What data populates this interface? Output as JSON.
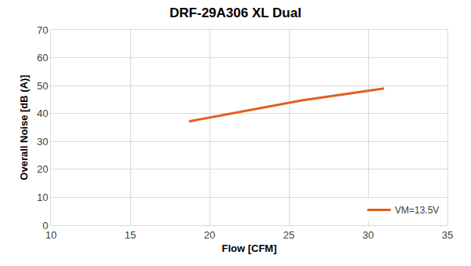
{
  "chart_data": {
    "type": "line",
    "title": "DRF-29A306 XL Dual",
    "x_label": "Flow [CFM]",
    "y_label": "Overall Noise [dB (A)]",
    "series": [
      {
        "name": "VM=13.5V",
        "color": "#e0601f",
        "x": [
          18.7,
          25.8,
          31.0
        ],
        "values": [
          37.2,
          44.7,
          49.0
        ]
      }
    ],
    "xlim": [
      10,
      35
    ],
    "xticks": [
      10,
      15,
      20,
      25,
      30,
      35
    ],
    "ylim": [
      0,
      70
    ],
    "yticks": [
      0,
      10,
      20,
      30,
      40,
      50,
      60,
      70
    ],
    "grid": true,
    "legend": "lower right"
  }
}
